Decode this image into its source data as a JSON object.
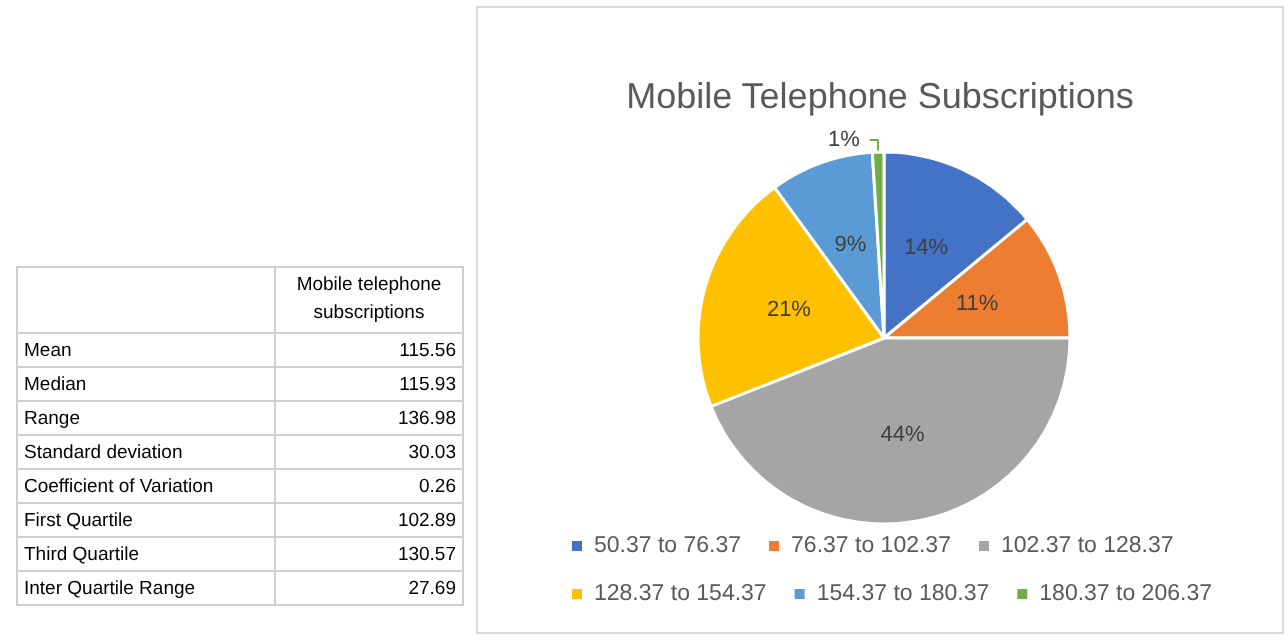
{
  "chart_data": [
    {
      "type": "other",
      "title": "Mobile telephone subscriptions",
      "categories": [
        "Mean",
        "Median",
        "Range",
        "Standard deviation",
        "Coefficient of Variation",
        "First Quartile",
        "Third Quartile",
        "Inter Quartile Range"
      ],
      "values": [
        115.56,
        115.93,
        136.98,
        30.03,
        0.26,
        102.89,
        130.57,
        27.69
      ],
      "data_labels": true
    },
    {
      "type": "pie",
      "title": "Mobile Telephone Subscriptions",
      "categories": [
        "50.37 to 76.37",
        "76.37 to 102.37",
        "102.37 to 128.37",
        "128.37 to 154.37",
        "154.37 to 180.37",
        "180.37 to 206.37"
      ],
      "values": [
        14,
        11,
        44,
        21,
        9,
        1
      ],
      "value_labels": [
        "14%",
        "11%",
        "44%",
        "21%",
        "9%",
        "1%"
      ],
      "colors": [
        "#4472c4",
        "#ed7d31",
        "#a5a5a5",
        "#ffc000",
        "#5b9bd5",
        "#70ad47"
      ],
      "legend": "bottom"
    }
  ]
}
